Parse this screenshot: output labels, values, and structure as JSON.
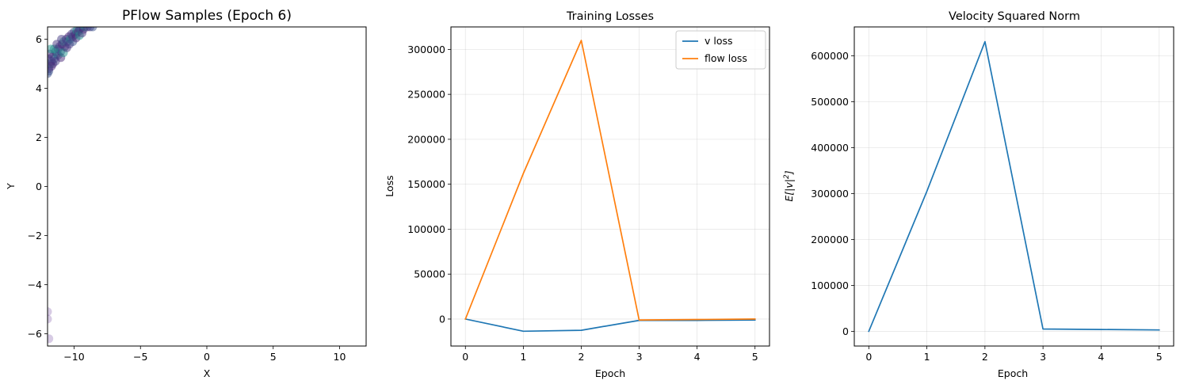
{
  "chart_data": [
    {
      "type": "scatter",
      "title": "PFlow Samples (Epoch 6)",
      "xlabel": "X",
      "ylabel": "Y",
      "xlim": [
        -12,
        12
      ],
      "ylim": [
        -6.5,
        6.5
      ],
      "xticks": [
        -10,
        -5,
        0,
        5,
        10
      ],
      "yticks": [
        -6,
        -4,
        -2,
        0,
        2,
        4,
        6
      ],
      "xtick_labels": [
        "−10",
        "−5",
        "0",
        "5",
        "10"
      ],
      "ytick_labels": [
        "−6",
        "−4",
        "−2",
        "0",
        "2",
        "4",
        "6"
      ],
      "grid": false,
      "colors": [
        "#3b528b",
        "#482878",
        "#21918c",
        "#46337e",
        "#443983"
      ],
      "points": [
        [
          -12.0,
          4.6
        ],
        [
          -11.9,
          4.8
        ],
        [
          -11.8,
          5.0
        ],
        [
          -11.7,
          5.1
        ],
        [
          -11.6,
          5.3
        ],
        [
          -11.5,
          5.2
        ],
        [
          -11.4,
          5.5
        ],
        [
          -11.3,
          5.4
        ],
        [
          -11.2,
          5.6
        ],
        [
          -11.1,
          5.7
        ],
        [
          -11.0,
          5.5
        ],
        [
          -10.9,
          5.8
        ],
        [
          -10.8,
          5.9
        ],
        [
          -10.7,
          5.7
        ],
        [
          -10.6,
          6.0
        ],
        [
          -10.5,
          5.9
        ],
        [
          -10.4,
          6.1
        ],
        [
          -10.3,
          6.0
        ],
        [
          -10.2,
          6.2
        ],
        [
          -10.1,
          6.1
        ],
        [
          -10.0,
          6.3
        ],
        [
          -9.9,
          6.2
        ],
        [
          -9.8,
          6.35
        ],
        [
          -9.7,
          6.3
        ],
        [
          -9.6,
          6.4
        ],
        [
          -9.5,
          6.45
        ],
        [
          -9.3,
          6.4
        ],
        [
          -9.2,
          6.5
        ],
        [
          -9.0,
          6.5
        ],
        [
          -8.8,
          6.5
        ],
        [
          -8.6,
          6.5
        ],
        [
          -11.85,
          5.4
        ],
        [
          -11.75,
          5.6
        ],
        [
          -11.6,
          5.0
        ],
        [
          -11.4,
          5.1
        ],
        [
          -11.2,
          5.35
        ],
        [
          -11.0,
          5.25
        ],
        [
          -10.8,
          5.45
        ],
        [
          -10.55,
          5.65
        ],
        [
          -10.35,
          5.8
        ],
        [
          -10.1,
          5.9
        ],
        [
          -9.85,
          6.05
        ],
        [
          -9.6,
          6.15
        ],
        [
          -9.4,
          6.25
        ],
        [
          -11.95,
          5.2
        ],
        [
          -11.9,
          4.7
        ],
        [
          -11.7,
          4.9
        ],
        [
          -11.5,
          5.6
        ],
        [
          -11.3,
          5.8
        ],
        [
          -10.95,
          6.0
        ],
        [
          -12.0,
          -5.1
        ],
        [
          -12.0,
          -5.4
        ],
        [
          -11.9,
          -6.2
        ]
      ]
    },
    {
      "type": "line",
      "title": "Training Losses",
      "xlabel": "Epoch",
      "ylabel": "Loss",
      "xlim": [
        -0.25,
        5.25
      ],
      "ylim": [
        -30000,
        325000
      ],
      "xticks": [
        0,
        1,
        2,
        3,
        4,
        5
      ],
      "yticks": [
        0,
        50000,
        100000,
        150000,
        200000,
        250000,
        300000
      ],
      "xtick_labels": [
        "0",
        "1",
        "2",
        "3",
        "4",
        "5"
      ],
      "ytick_labels": [
        "0",
        "50000",
        "100000",
        "150000",
        "200000",
        "250000",
        "300000"
      ],
      "grid": true,
      "legend": "top-right",
      "x": [
        0,
        1,
        2,
        3,
        4,
        5
      ],
      "series": [
        {
          "name": "v loss",
          "color": "#1f77b4",
          "values": [
            0,
            -13500,
            -12500,
            -1500,
            -1500,
            -1000
          ]
        },
        {
          "name": "flow loss",
          "color": "#ff7f0e",
          "values": [
            0,
            162000,
            310000,
            -1000,
            -500,
            0
          ]
        }
      ]
    },
    {
      "type": "line",
      "title": "Velocity Squared Norm",
      "xlabel": "Epoch",
      "ylabel": "E[|v|²]",
      "ylabel_main": "E[|v|",
      "ylabel_sup": "2",
      "ylabel_tail": "]",
      "xlim": [
        -0.25,
        5.25
      ],
      "ylim": [
        -32000,
        663000
      ],
      "xticks": [
        0,
        1,
        2,
        3,
        4,
        5
      ],
      "yticks": [
        0,
        100000,
        200000,
        300000,
        400000,
        500000,
        600000
      ],
      "xtick_labels": [
        "0",
        "1",
        "2",
        "3",
        "4",
        "5"
      ],
      "ytick_labels": [
        "0",
        "100000",
        "200000",
        "300000",
        "400000",
        "500000",
        "600000"
      ],
      "grid": true,
      "x": [
        0,
        1,
        2,
        3,
        4,
        5
      ],
      "series": [
        {
          "color": "#1f77b4",
          "values": [
            0,
            305000,
            631000,
            5000,
            4000,
            3000
          ]
        }
      ]
    }
  ]
}
